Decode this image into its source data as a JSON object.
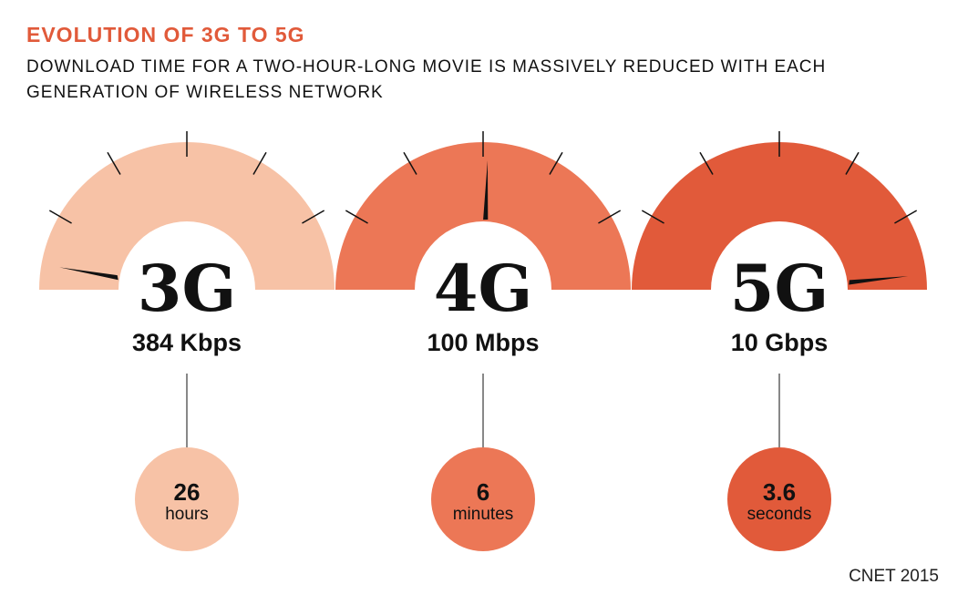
{
  "header": {
    "title": "EVOLUTION OF 3G TO 5G",
    "subtitle": "DOWNLOAD TIME FOR A TWO-HOUR-LONG MOVIE IS MASSIVELY REDUCED WITH EACH GENERATION OF WIRELESS NETWORK",
    "title_color": "#e15a3a"
  },
  "chart_data": {
    "type": "gauge",
    "title": "EVOLUTION OF 3G TO 5G",
    "subtitle": "DOWNLOAD TIME FOR A TWO-HOUR-LONG MOVIE IS MASSIVELY REDUCED WITH EACH GENERATION OF WIRELESS NETWORK",
    "categories": [
      "3G",
      "4G",
      "5G"
    ],
    "items": [
      {
        "generation": "3G",
        "speed": "384 Kbps",
        "download_time_value": "26",
        "download_time_unit": "hours",
        "needle_angle_deg": 10,
        "color": "#f7c2a6"
      },
      {
        "generation": "4G",
        "speed": "100 Mbps",
        "download_time_value": "6",
        "download_time_unit": "minutes",
        "needle_angle_deg": 92,
        "color": "#ec7756"
      },
      {
        "generation": "5G",
        "speed": "10 Gbps",
        "download_time_value": "3.6",
        "download_time_unit": "seconds",
        "needle_angle_deg": 174,
        "color": "#e15a3a"
      }
    ]
  },
  "footer": {
    "source": "CNET 2015"
  }
}
